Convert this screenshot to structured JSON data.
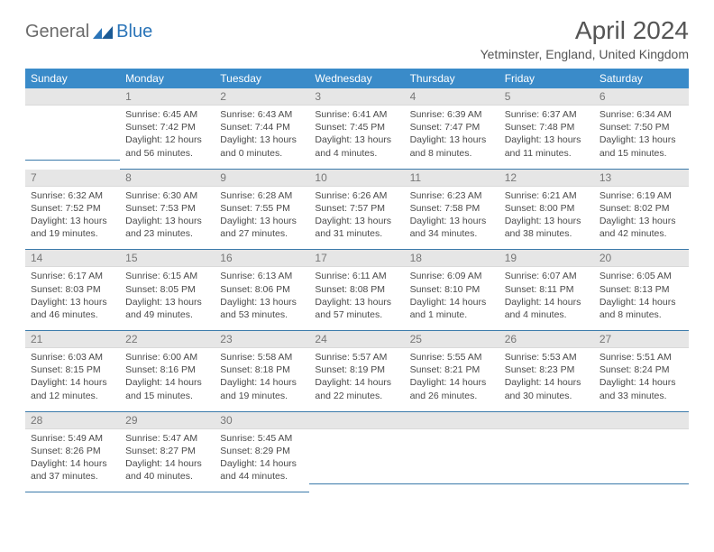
{
  "brand": {
    "part1": "General",
    "part2": "Blue",
    "logo_color": "#2a74b8"
  },
  "title": "April 2024",
  "subtitle": "Yetminster, England, United Kingdom",
  "header_bg": "#3a8bc9",
  "header_fg": "#ffffff",
  "daybar_bg": "#e6e6e6",
  "border_color": "#3a7aaa",
  "days": [
    "Sunday",
    "Monday",
    "Tuesday",
    "Wednesday",
    "Thursday",
    "Friday",
    "Saturday"
  ],
  "grid": [
    [
      {
        "n": "",
        "sr": "",
        "ss": "",
        "dl1": "",
        "dl2": ""
      },
      {
        "n": "1",
        "sr": "Sunrise: 6:45 AM",
        "ss": "Sunset: 7:42 PM",
        "dl1": "Daylight: 12 hours",
        "dl2": "and 56 minutes."
      },
      {
        "n": "2",
        "sr": "Sunrise: 6:43 AM",
        "ss": "Sunset: 7:44 PM",
        "dl1": "Daylight: 13 hours",
        "dl2": "and 0 minutes."
      },
      {
        "n": "3",
        "sr": "Sunrise: 6:41 AM",
        "ss": "Sunset: 7:45 PM",
        "dl1": "Daylight: 13 hours",
        "dl2": "and 4 minutes."
      },
      {
        "n": "4",
        "sr": "Sunrise: 6:39 AM",
        "ss": "Sunset: 7:47 PM",
        "dl1": "Daylight: 13 hours",
        "dl2": "and 8 minutes."
      },
      {
        "n": "5",
        "sr": "Sunrise: 6:37 AM",
        "ss": "Sunset: 7:48 PM",
        "dl1": "Daylight: 13 hours",
        "dl2": "and 11 minutes."
      },
      {
        "n": "6",
        "sr": "Sunrise: 6:34 AM",
        "ss": "Sunset: 7:50 PM",
        "dl1": "Daylight: 13 hours",
        "dl2": "and 15 minutes."
      }
    ],
    [
      {
        "n": "7",
        "sr": "Sunrise: 6:32 AM",
        "ss": "Sunset: 7:52 PM",
        "dl1": "Daylight: 13 hours",
        "dl2": "and 19 minutes."
      },
      {
        "n": "8",
        "sr": "Sunrise: 6:30 AM",
        "ss": "Sunset: 7:53 PM",
        "dl1": "Daylight: 13 hours",
        "dl2": "and 23 minutes."
      },
      {
        "n": "9",
        "sr": "Sunrise: 6:28 AM",
        "ss": "Sunset: 7:55 PM",
        "dl1": "Daylight: 13 hours",
        "dl2": "and 27 minutes."
      },
      {
        "n": "10",
        "sr": "Sunrise: 6:26 AM",
        "ss": "Sunset: 7:57 PM",
        "dl1": "Daylight: 13 hours",
        "dl2": "and 31 minutes."
      },
      {
        "n": "11",
        "sr": "Sunrise: 6:23 AM",
        "ss": "Sunset: 7:58 PM",
        "dl1": "Daylight: 13 hours",
        "dl2": "and 34 minutes."
      },
      {
        "n": "12",
        "sr": "Sunrise: 6:21 AM",
        "ss": "Sunset: 8:00 PM",
        "dl1": "Daylight: 13 hours",
        "dl2": "and 38 minutes."
      },
      {
        "n": "13",
        "sr": "Sunrise: 6:19 AM",
        "ss": "Sunset: 8:02 PM",
        "dl1": "Daylight: 13 hours",
        "dl2": "and 42 minutes."
      }
    ],
    [
      {
        "n": "14",
        "sr": "Sunrise: 6:17 AM",
        "ss": "Sunset: 8:03 PM",
        "dl1": "Daylight: 13 hours",
        "dl2": "and 46 minutes."
      },
      {
        "n": "15",
        "sr": "Sunrise: 6:15 AM",
        "ss": "Sunset: 8:05 PM",
        "dl1": "Daylight: 13 hours",
        "dl2": "and 49 minutes."
      },
      {
        "n": "16",
        "sr": "Sunrise: 6:13 AM",
        "ss": "Sunset: 8:06 PM",
        "dl1": "Daylight: 13 hours",
        "dl2": "and 53 minutes."
      },
      {
        "n": "17",
        "sr": "Sunrise: 6:11 AM",
        "ss": "Sunset: 8:08 PM",
        "dl1": "Daylight: 13 hours",
        "dl2": "and 57 minutes."
      },
      {
        "n": "18",
        "sr": "Sunrise: 6:09 AM",
        "ss": "Sunset: 8:10 PM",
        "dl1": "Daylight: 14 hours",
        "dl2": "and 1 minute."
      },
      {
        "n": "19",
        "sr": "Sunrise: 6:07 AM",
        "ss": "Sunset: 8:11 PM",
        "dl1": "Daylight: 14 hours",
        "dl2": "and 4 minutes."
      },
      {
        "n": "20",
        "sr": "Sunrise: 6:05 AM",
        "ss": "Sunset: 8:13 PM",
        "dl1": "Daylight: 14 hours",
        "dl2": "and 8 minutes."
      }
    ],
    [
      {
        "n": "21",
        "sr": "Sunrise: 6:03 AM",
        "ss": "Sunset: 8:15 PM",
        "dl1": "Daylight: 14 hours",
        "dl2": "and 12 minutes."
      },
      {
        "n": "22",
        "sr": "Sunrise: 6:00 AM",
        "ss": "Sunset: 8:16 PM",
        "dl1": "Daylight: 14 hours",
        "dl2": "and 15 minutes."
      },
      {
        "n": "23",
        "sr": "Sunrise: 5:58 AM",
        "ss": "Sunset: 8:18 PM",
        "dl1": "Daylight: 14 hours",
        "dl2": "and 19 minutes."
      },
      {
        "n": "24",
        "sr": "Sunrise: 5:57 AM",
        "ss": "Sunset: 8:19 PM",
        "dl1": "Daylight: 14 hours",
        "dl2": "and 22 minutes."
      },
      {
        "n": "25",
        "sr": "Sunrise: 5:55 AM",
        "ss": "Sunset: 8:21 PM",
        "dl1": "Daylight: 14 hours",
        "dl2": "and 26 minutes."
      },
      {
        "n": "26",
        "sr": "Sunrise: 5:53 AM",
        "ss": "Sunset: 8:23 PM",
        "dl1": "Daylight: 14 hours",
        "dl2": "and 30 minutes."
      },
      {
        "n": "27",
        "sr": "Sunrise: 5:51 AM",
        "ss": "Sunset: 8:24 PM",
        "dl1": "Daylight: 14 hours",
        "dl2": "and 33 minutes."
      }
    ],
    [
      {
        "n": "28",
        "sr": "Sunrise: 5:49 AM",
        "ss": "Sunset: 8:26 PM",
        "dl1": "Daylight: 14 hours",
        "dl2": "and 37 minutes."
      },
      {
        "n": "29",
        "sr": "Sunrise: 5:47 AM",
        "ss": "Sunset: 8:27 PM",
        "dl1": "Daylight: 14 hours",
        "dl2": "and 40 minutes."
      },
      {
        "n": "30",
        "sr": "Sunrise: 5:45 AM",
        "ss": "Sunset: 8:29 PM",
        "dl1": "Daylight: 14 hours",
        "dl2": "and 44 minutes."
      },
      {
        "n": "",
        "sr": "",
        "ss": "",
        "dl1": "",
        "dl2": ""
      },
      {
        "n": "",
        "sr": "",
        "ss": "",
        "dl1": "",
        "dl2": ""
      },
      {
        "n": "",
        "sr": "",
        "ss": "",
        "dl1": "",
        "dl2": ""
      },
      {
        "n": "",
        "sr": "",
        "ss": "",
        "dl1": "",
        "dl2": ""
      }
    ]
  ]
}
